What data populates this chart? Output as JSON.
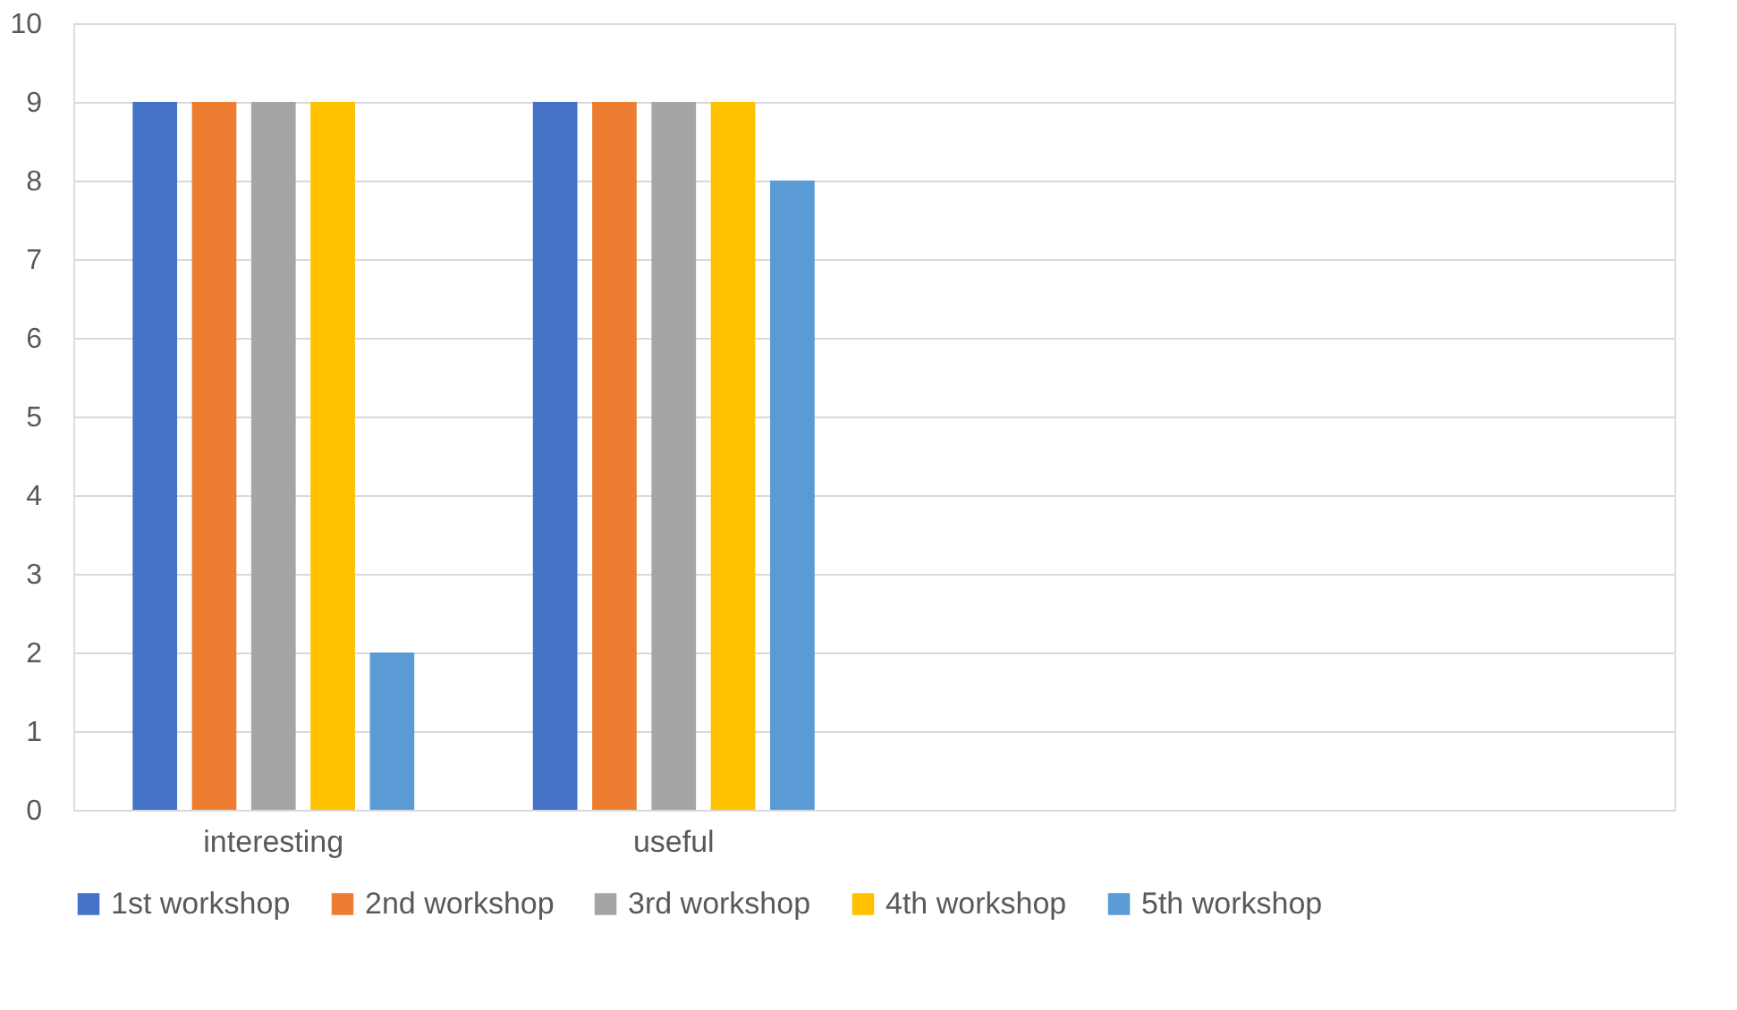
{
  "chart_data": {
    "type": "bar",
    "categories": [
      "interesting",
      "useful",
      null,
      null
    ],
    "series": [
      {
        "name": "1st workshop",
        "color": "#4472c4",
        "values": [
          9,
          9,
          null,
          null
        ]
      },
      {
        "name": "2nd workshop",
        "color": "#ed7d31",
        "values": [
          9,
          9,
          null,
          null
        ]
      },
      {
        "name": "3rd workshop",
        "color": "#a5a5a5",
        "values": [
          9,
          9,
          null,
          null
        ]
      },
      {
        "name": "4th workshop",
        "color": "#ffc000",
        "values": [
          9,
          9,
          null,
          null
        ]
      },
      {
        "name": "5th workshop",
        "color": "#5b9bd5",
        "values": [
          2,
          8,
          null,
          null
        ]
      }
    ],
    "ylim": [
      0,
      10
    ],
    "yticks": [
      0,
      1,
      2,
      3,
      4,
      5,
      6,
      7,
      8,
      9,
      10
    ],
    "grid": "y",
    "legend": "bottom"
  }
}
